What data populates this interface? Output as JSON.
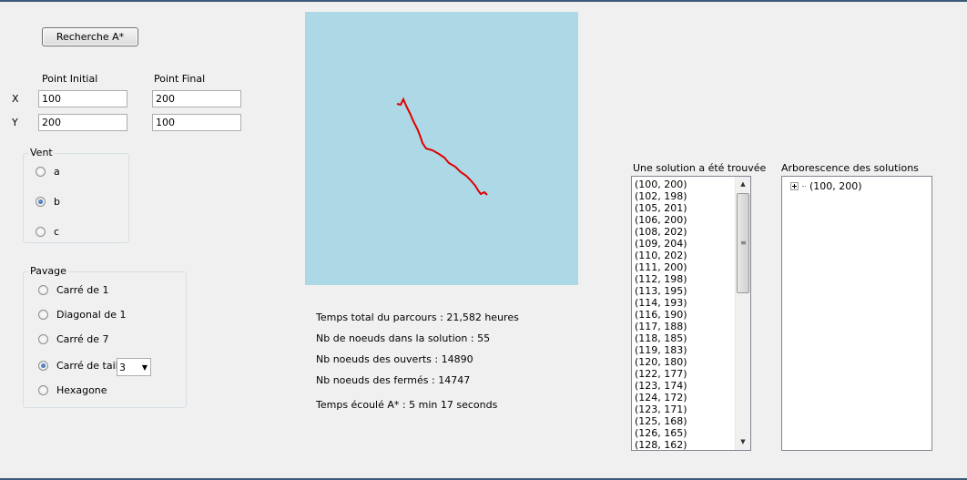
{
  "search_button": "Recherche A*",
  "coords": {
    "initial_label": "Point Initial",
    "final_label": "Point Final",
    "x_label": "X",
    "y_label": "Y",
    "x_initial": "100",
    "y_initial": "200",
    "x_final": "200",
    "y_final": "100"
  },
  "wind": {
    "title": "Vent",
    "options": [
      "a",
      "b",
      "c"
    ],
    "selected": "b"
  },
  "paving": {
    "title": "Pavage",
    "options": [
      "Carré de 1",
      "Diagonal de 1",
      "Carré de 7",
      "Carré de taille",
      "Hexagone"
    ],
    "selected": "Carré de taille",
    "size_value": "3"
  },
  "canvas": {
    "background": "#add8e6",
    "path_color": "#e00000"
  },
  "stats": {
    "total_time": "Temps total du parcours : 21,582 heures",
    "nodes_solution": "Nb de noeuds dans la solution : 55",
    "nodes_open": "Nb noeuds des ouverts : 14890",
    "nodes_closed": "Nb noeuds des fermés : 14747",
    "elapsed": "Temps écoulé A* : 5 min 17 seconds"
  },
  "solution": {
    "title": "Une solution a été trouvée",
    "items": [
      "(100, 200)",
      "(102, 198)",
      "(105, 201)",
      "(106, 200)",
      "(108, 202)",
      "(109, 204)",
      "(110, 202)",
      "(111, 200)",
      "(112, 198)",
      "(113, 195)",
      "(114, 193)",
      "(116, 190)",
      "(117, 188)",
      "(118, 185)",
      "(119, 183)",
      "(120, 180)",
      "(122, 177)",
      "(123, 174)",
      "(124, 172)",
      "(123, 171)",
      "(125, 168)",
      "(126, 165)",
      "(128, 162)"
    ]
  },
  "tree": {
    "title": "Arborescence des solutions",
    "root": "(100, 200)"
  }
}
